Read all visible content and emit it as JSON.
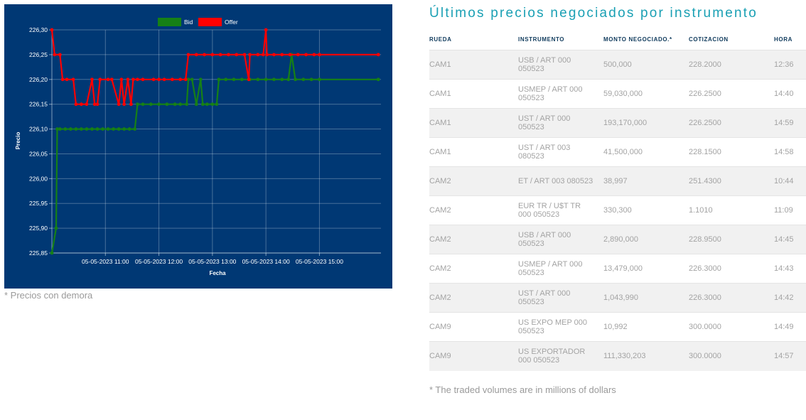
{
  "chart_data": {
    "type": "line",
    "xlabel": "Fecha",
    "ylabel": "Precio",
    "x_tick_labels": [
      "05-05-2023 11:00",
      "05-05-2023 12:00",
      "05-05-2023 13:00",
      "05-05-2023 14:00",
      "05-05-2023 15:00"
    ],
    "x_tick_hours": [
      11,
      12,
      13,
      14,
      15
    ],
    "xlim": [
      10.0,
      16.15
    ],
    "y_tick_labels": [
      "225,85",
      "225,90",
      "225,95",
      "226,00",
      "226,05",
      "226,10",
      "226,15",
      "226,20",
      "226,25",
      "226,30"
    ],
    "ylim": [
      225.85,
      226.3
    ],
    "grid": true,
    "legend_position": "top-center",
    "series": [
      {
        "name": "Bid",
        "color": "#168016",
        "points": [
          [
            10.0,
            225.85
          ],
          [
            10.08,
            225.9
          ],
          [
            10.1,
            226.1
          ],
          [
            10.15,
            226.1
          ],
          [
            10.25,
            226.1
          ],
          [
            10.35,
            226.1
          ],
          [
            10.45,
            226.1
          ],
          [
            10.55,
            226.1
          ],
          [
            10.65,
            226.1
          ],
          [
            10.75,
            226.1
          ],
          [
            10.85,
            226.1
          ],
          [
            10.95,
            226.1
          ],
          [
            11.05,
            226.1
          ],
          [
            11.15,
            226.1
          ],
          [
            11.25,
            226.1
          ],
          [
            11.35,
            226.1
          ],
          [
            11.45,
            226.1
          ],
          [
            11.55,
            226.1
          ],
          [
            11.6,
            226.15
          ],
          [
            11.7,
            226.15
          ],
          [
            11.85,
            226.15
          ],
          [
            12.0,
            226.15
          ],
          [
            12.15,
            226.15
          ],
          [
            12.3,
            226.15
          ],
          [
            12.4,
            226.15
          ],
          [
            12.52,
            226.15
          ],
          [
            12.55,
            226.2
          ],
          [
            12.62,
            226.2
          ],
          [
            12.7,
            226.15
          ],
          [
            12.78,
            226.2
          ],
          [
            12.82,
            226.15
          ],
          [
            12.9,
            226.15
          ],
          [
            13.0,
            226.15
          ],
          [
            13.08,
            226.15
          ],
          [
            13.12,
            226.2
          ],
          [
            13.25,
            226.2
          ],
          [
            13.4,
            226.2
          ],
          [
            13.55,
            226.2
          ],
          [
            13.7,
            226.2
          ],
          [
            13.85,
            226.2
          ],
          [
            14.0,
            226.2
          ],
          [
            14.15,
            226.2
          ],
          [
            14.3,
            226.2
          ],
          [
            14.42,
            226.2
          ],
          [
            14.48,
            226.25
          ],
          [
            14.55,
            226.2
          ],
          [
            14.7,
            226.2
          ],
          [
            14.85,
            226.2
          ],
          [
            15.0,
            226.2
          ],
          [
            16.1,
            226.2
          ]
        ]
      },
      {
        "name": "Offer",
        "color": "#ff0000",
        "points": [
          [
            10.0,
            226.3
          ],
          [
            10.05,
            226.25
          ],
          [
            10.15,
            226.25
          ],
          [
            10.2,
            226.2
          ],
          [
            10.28,
            226.2
          ],
          [
            10.4,
            226.2
          ],
          [
            10.45,
            226.15
          ],
          [
            10.55,
            226.15
          ],
          [
            10.65,
            226.15
          ],
          [
            10.75,
            226.2
          ],
          [
            10.8,
            226.15
          ],
          [
            10.85,
            226.15
          ],
          [
            10.9,
            226.2
          ],
          [
            11.05,
            226.2
          ],
          [
            11.12,
            226.2
          ],
          [
            11.25,
            226.15
          ],
          [
            11.3,
            226.2
          ],
          [
            11.35,
            226.15
          ],
          [
            11.42,
            226.2
          ],
          [
            11.48,
            226.15
          ],
          [
            11.52,
            226.2
          ],
          [
            11.6,
            226.2
          ],
          [
            11.7,
            226.2
          ],
          [
            11.9,
            226.2
          ],
          [
            12.0,
            226.2
          ],
          [
            12.1,
            226.2
          ],
          [
            12.25,
            226.2
          ],
          [
            12.4,
            226.2
          ],
          [
            12.5,
            226.2
          ],
          [
            12.55,
            226.25
          ],
          [
            12.7,
            226.25
          ],
          [
            12.85,
            226.25
          ],
          [
            13.0,
            226.25
          ],
          [
            13.15,
            226.25
          ],
          [
            13.3,
            226.25
          ],
          [
            13.45,
            226.25
          ],
          [
            13.6,
            226.25
          ],
          [
            13.68,
            226.2
          ],
          [
            13.7,
            226.25
          ],
          [
            13.85,
            226.25
          ],
          [
            13.95,
            226.25
          ],
          [
            14.0,
            226.3
          ],
          [
            14.02,
            226.25
          ],
          [
            14.15,
            226.25
          ],
          [
            14.3,
            226.25
          ],
          [
            14.45,
            226.25
          ],
          [
            14.6,
            226.25
          ],
          [
            14.75,
            226.25
          ],
          [
            14.9,
            226.25
          ],
          [
            15.0,
            226.25
          ],
          [
            16.1,
            226.25
          ]
        ]
      }
    ]
  },
  "chart_note": "* Precios con demora",
  "table": {
    "title": "Últimos precios negociados por instrumento",
    "headers": [
      "RUEDA",
      "INSTRUMENTO",
      "MONTO NEGOCIADO.*",
      "COTIZACION",
      "HORA"
    ],
    "rows": [
      {
        "rueda": "CAM1",
        "instrumento": "USB / ART 000 050523",
        "monto": "500,000",
        "cotizacion": "228.2000",
        "hora": "12:36"
      },
      {
        "rueda": "CAM1",
        "instrumento": "USMEP / ART 000 050523",
        "monto": "59,030,000",
        "cotizacion": "226.2500",
        "hora": "14:40"
      },
      {
        "rueda": "CAM1",
        "instrumento": "UST / ART 000 050523",
        "monto": "193,170,000",
        "cotizacion": "226.2500",
        "hora": "14:59"
      },
      {
        "rueda": "CAM1",
        "instrumento": "UST / ART 003 080523",
        "monto": "41,500,000",
        "cotizacion": "228.1500",
        "hora": "14:58"
      },
      {
        "rueda": "CAM2",
        "instrumento": "ET / ART 003 080523",
        "monto": "38,997",
        "cotizacion": "251.4300",
        "hora": "10:44"
      },
      {
        "rueda": "CAM2",
        "instrumento": "EUR TR / U$T TR 000 050523",
        "monto": "330,300",
        "cotizacion": "1.1010",
        "hora": "11:09"
      },
      {
        "rueda": "CAM2",
        "instrumento": "USB / ART 000 050523",
        "monto": "2,890,000",
        "cotizacion": "228.9500",
        "hora": "14:45"
      },
      {
        "rueda": "CAM2",
        "instrumento": "USMEP / ART 000 050523",
        "monto": "13,479,000",
        "cotizacion": "226.3000",
        "hora": "14:43"
      },
      {
        "rueda": "CAM2",
        "instrumento": "UST / ART 000 050523",
        "monto": "1,043,990",
        "cotizacion": "226.3000",
        "hora": "14:42"
      },
      {
        "rueda": "CAM9",
        "instrumento": "US EXPO MEP 000 050523",
        "monto": "10,992",
        "cotizacion": "300.0000",
        "hora": "14:49"
      },
      {
        "rueda": "CAM9",
        "instrumento": "US EXPORTADOR 000 050523",
        "monto": "111,330,203",
        "cotizacion": "300.0000",
        "hora": "14:57"
      }
    ],
    "note": "* The traded volumes are in millions of dollars"
  }
}
